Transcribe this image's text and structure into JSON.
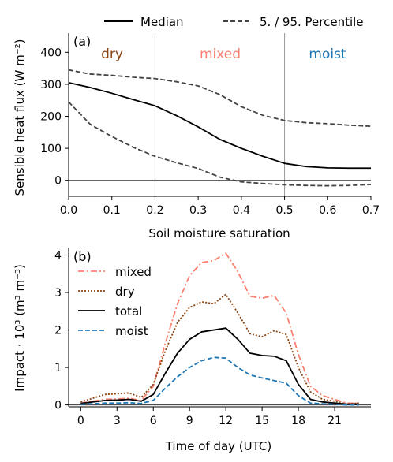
{
  "chart_data": [
    {
      "type": "line",
      "panel_label": "(a)",
      "xlabel": "Soil moisture saturation",
      "ylabel": "Sensible heat flux (W m⁻²)",
      "xlim": [
        0.0,
        0.7
      ],
      "ylim": [
        -50,
        460
      ],
      "xticks": [
        0.0,
        0.1,
        0.2,
        0.3,
        0.4,
        0.5,
        0.6,
        0.7
      ],
      "xtick_labels": [
        "0.0",
        "0.1",
        "0.2",
        "0.3",
        "0.4",
        "0.5",
        "0.6",
        "0.7"
      ],
      "yticks": [
        0,
        100,
        200,
        300,
        400
      ],
      "ytick_labels": [
        "0",
        "100",
        "200",
        "300",
        "400"
      ],
      "legend": {
        "placement": "top",
        "entries": [
          {
            "label": "Median",
            "color": "#000000",
            "dash": "solid"
          },
          {
            "label": "5. / 95. Percentile",
            "color": "#444444",
            "dash": "dashed"
          }
        ]
      },
      "vlines": [
        0.2,
        0.5
      ],
      "hlines": [
        0
      ],
      "regions": [
        {
          "label": "dry",
          "color": "#8b4513"
        },
        {
          "label": "mixed",
          "color": "#fa8072"
        },
        {
          "label": "moist",
          "color": "#1f77b4"
        }
      ],
      "x": [
        0.0,
        0.05,
        0.1,
        0.15,
        0.2,
        0.25,
        0.3,
        0.35,
        0.4,
        0.45,
        0.5,
        0.55,
        0.6,
        0.65,
        0.7
      ],
      "series": [
        {
          "name": "Median",
          "color": "#000000",
          "dash": "solid",
          "values": [
            305,
            290,
            272,
            252,
            233,
            202,
            167,
            128,
            100,
            75,
            53,
            43,
            39,
            38,
            38
          ]
        },
        {
          "name": "95. Percentile",
          "color": "#444444",
          "dash": "dashed",
          "values": [
            345,
            332,
            328,
            322,
            318,
            308,
            295,
            268,
            230,
            203,
            187,
            180,
            177,
            172,
            169
          ]
        },
        {
          "name": "5. Percentile",
          "color": "#444444",
          "dash": "dashed",
          "values": [
            245,
            175,
            137,
            103,
            75,
            55,
            37,
            10,
            -5,
            -10,
            -14,
            -16,
            -17,
            -16,
            -13
          ]
        }
      ]
    },
    {
      "type": "line",
      "panel_label": "(b)",
      "xlabel": "Time of day (UTC)",
      "ylabel": "Impact · 10³ (m³ m⁻³)",
      "xlim": [
        -1,
        24
      ],
      "ylim": [
        -0.05,
        4.2
      ],
      "xticks": [
        0,
        3,
        6,
        9,
        12,
        15,
        18,
        21
      ],
      "xtick_labels": [
        "0",
        "3",
        "6",
        "9",
        "12",
        "15",
        "18",
        "21"
      ],
      "yticks": [
        0,
        1,
        2,
        3,
        4
      ],
      "ytick_labels": [
        "0",
        "1",
        "2",
        "3",
        "4"
      ],
      "legend": {
        "placement": "upper-left"
      },
      "hlines": [
        0
      ],
      "x": [
        0,
        1,
        2,
        3,
        4,
        5,
        6,
        7,
        8,
        9,
        10,
        11,
        12,
        13,
        14,
        15,
        16,
        17,
        18,
        19,
        20,
        21,
        22,
        23
      ],
      "series": [
        {
          "name": "mixed",
          "color": "#fa8072",
          "dash": "dashdot",
          "values": [
            0.05,
            0.1,
            0.15,
            0.16,
            0.18,
            0.12,
            0.5,
            1.65,
            2.7,
            3.45,
            3.8,
            3.85,
            4.05,
            3.55,
            2.9,
            2.85,
            2.92,
            2.45,
            1.35,
            0.5,
            0.25,
            0.15,
            0.05,
            0.04
          ]
        },
        {
          "name": "dry",
          "color": "#8b4513",
          "dash": "dotted",
          "values": [
            0.08,
            0.18,
            0.28,
            0.3,
            0.32,
            0.2,
            0.55,
            1.45,
            2.2,
            2.6,
            2.75,
            2.7,
            2.95,
            2.45,
            1.9,
            1.82,
            1.98,
            1.88,
            1.0,
            0.35,
            0.15,
            0.1,
            0.02,
            0.05
          ]
        },
        {
          "name": "total",
          "color": "#000000",
          "dash": "solid",
          "values": [
            0.04,
            0.08,
            0.12,
            0.13,
            0.15,
            0.1,
            0.28,
            0.85,
            1.38,
            1.75,
            1.95,
            2.0,
            2.05,
            1.75,
            1.38,
            1.32,
            1.3,
            1.18,
            0.55,
            0.15,
            0.08,
            0.05,
            0.02,
            0.02
          ]
        },
        {
          "name": "moist",
          "color": "#1f77b4",
          "dash": "dashed",
          "values": [
            0.02,
            0.03,
            0.05,
            0.05,
            0.06,
            0.04,
            0.12,
            0.45,
            0.75,
            1.0,
            1.18,
            1.27,
            1.25,
            1.0,
            0.8,
            0.72,
            0.65,
            0.58,
            0.25,
            0.05,
            0.03,
            0.02,
            0.0,
            0.0
          ]
        }
      ]
    }
  ]
}
